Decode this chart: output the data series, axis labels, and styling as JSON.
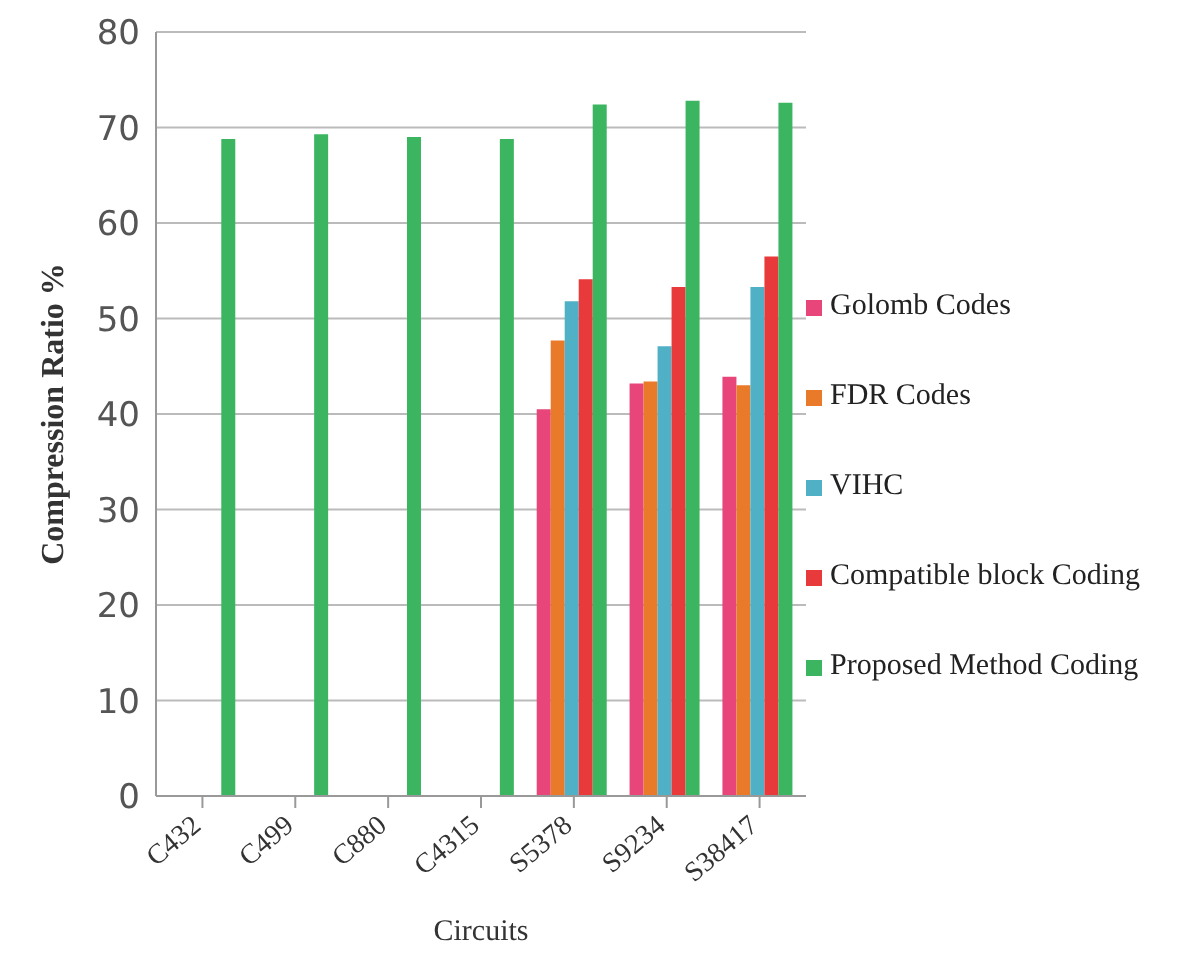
{
  "chart_data": {
    "type": "bar",
    "xlabel": "Circuits",
    "ylabel": "Compression Ratio %",
    "categories": [
      "C432",
      "C499",
      "C880",
      "C4315",
      "S5378",
      "S9234",
      "S38417"
    ],
    "series": [
      {
        "name": "Golomb Codes",
        "color": "#e8457a",
        "values": [
          null,
          null,
          null,
          null,
          40.5,
          43.2,
          43.9
        ]
      },
      {
        "name": "FDR Codes",
        "color": "#e87a2a",
        "values": [
          null,
          null,
          null,
          null,
          47.7,
          43.4,
          43.0
        ]
      },
      {
        "name": "VIHC",
        "color": "#4fb0c6",
        "values": [
          null,
          null,
          null,
          null,
          51.8,
          47.1,
          53.3
        ]
      },
      {
        "name": "Compatible block Coding",
        "color": "#e83a3a",
        "values": [
          null,
          null,
          null,
          null,
          54.1,
          53.3,
          56.5
        ]
      },
      {
        "name": "Proposed Method Coding",
        "color": "#3cb560",
        "values": [
          68.8,
          69.3,
          69.0,
          68.8,
          72.4,
          72.8,
          72.6
        ]
      }
    ],
    "ylim": [
      0,
      80
    ],
    "yticks": [
      0,
      10,
      20,
      30,
      40,
      50,
      60,
      70,
      80
    ],
    "grid": "y",
    "legend": "right"
  }
}
